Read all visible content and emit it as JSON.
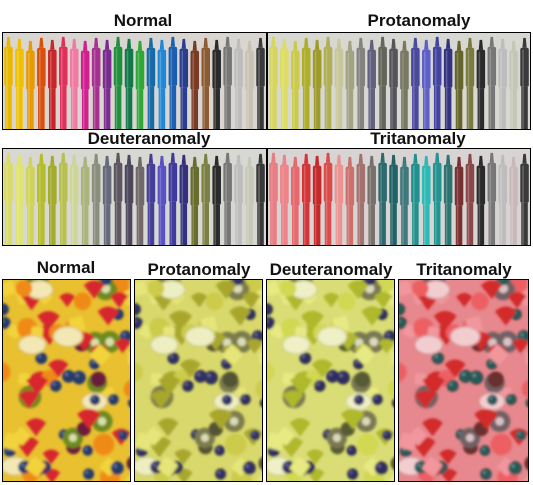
{
  "figure": {
    "markers": {
      "title": "Normal",
      "panels": [
        {
          "label": "Normal",
          "filter": "normal"
        },
        {
          "label": "Protanomaly",
          "filter": "protan"
        },
        {
          "label": "Deuteranomaly",
          "filter": "deutan"
        },
        {
          "label": "Tritanomaly",
          "filter": "tritan"
        }
      ],
      "marker_colors": [
        "#e8b800",
        "#f0c000",
        "#e89a00",
        "#d94f0b",
        "#c9262a",
        "#e0305a",
        "#f07aa2",
        "#d21f8f",
        "#a6308f",
        "#7a2b8f",
        "#1f8f3c",
        "#127a4a",
        "#30a838",
        "#166aa8",
        "#2188d6",
        "#1b5fb0",
        "#2a3d8f",
        "#7a3b25",
        "#8c5a33",
        "#2b2b2b",
        "#777777",
        "#bdbdbd",
        "#c9c1b0",
        "#3a3a3a"
      ]
    },
    "fruit": {
      "panels": [
        {
          "label": "Normal",
          "filter": "normal"
        },
        {
          "label": "Protanomaly",
          "filter": "protan"
        },
        {
          "label": "Deuteranomaly",
          "filter": "deutan"
        },
        {
          "label": "Tritanomaly",
          "filter": "tritan"
        }
      ]
    }
  }
}
